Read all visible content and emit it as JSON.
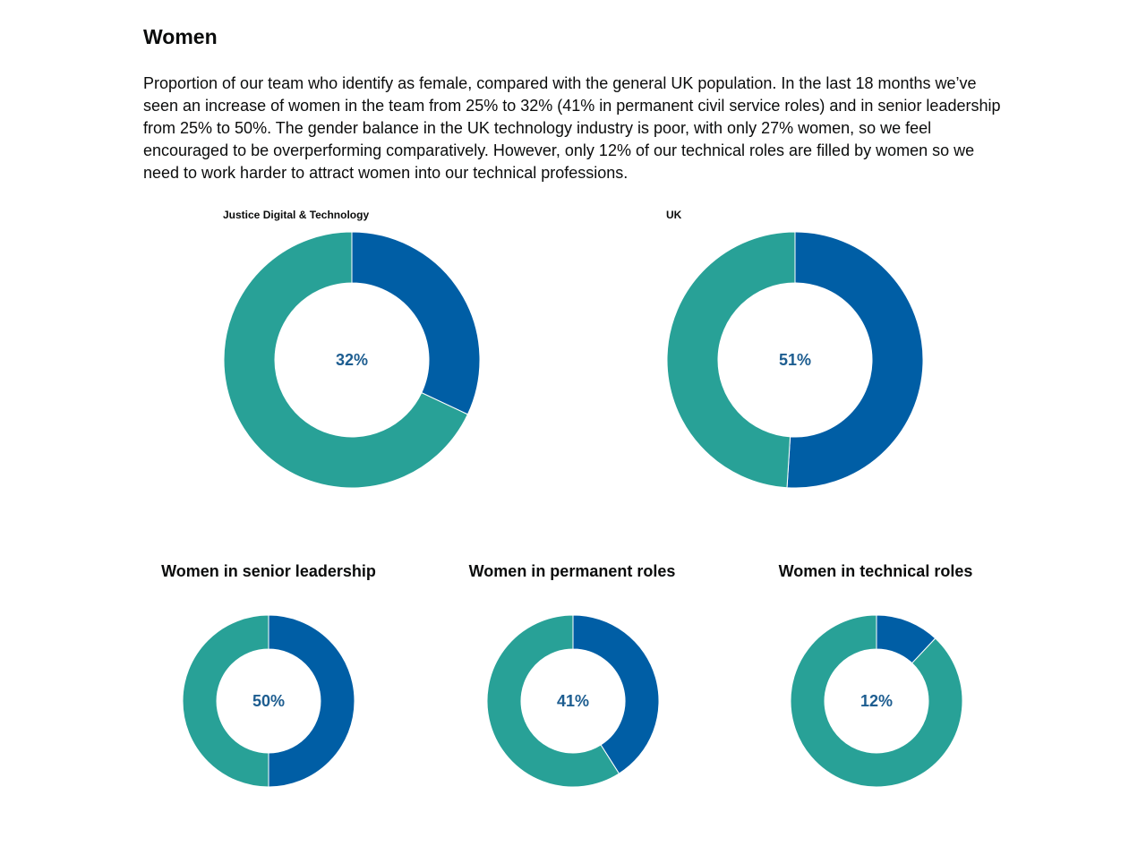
{
  "page": {
    "heading": "Women",
    "intro": "Proportion of our team who identify as female, compared with the general UK population. In the last 18 months we’ve seen an increase of women in the team from 25% to 32% (41% in permanent civil service roles) and in senior leadership from 25% to 50%. The gender balance in the UK technology industry is poor, with only 27% women, so we feel encouraged to be overperforming comparatively. However, only 12% of our technical roles are filled by women so we need to work harder to attract women into our technical professions."
  },
  "colors": {
    "women": "#005ea5",
    "other": "#28a197",
    "label": "#1d5d90"
  },
  "chart_data": [
    {
      "type": "pie",
      "label": "Justice Digital & Technology",
      "value": 32,
      "center_label": "32%"
    },
    {
      "type": "pie",
      "label": "UK",
      "value": 51,
      "center_label": "51%"
    },
    {
      "type": "pie",
      "title": "Women in senior leadership",
      "value": 50,
      "center_label": "50%"
    },
    {
      "type": "pie",
      "title": "Women in permanent roles",
      "value": 41,
      "center_label": "41%"
    },
    {
      "type": "pie",
      "title": "Women in technical roles",
      "value": 12,
      "center_label": "12%"
    }
  ]
}
